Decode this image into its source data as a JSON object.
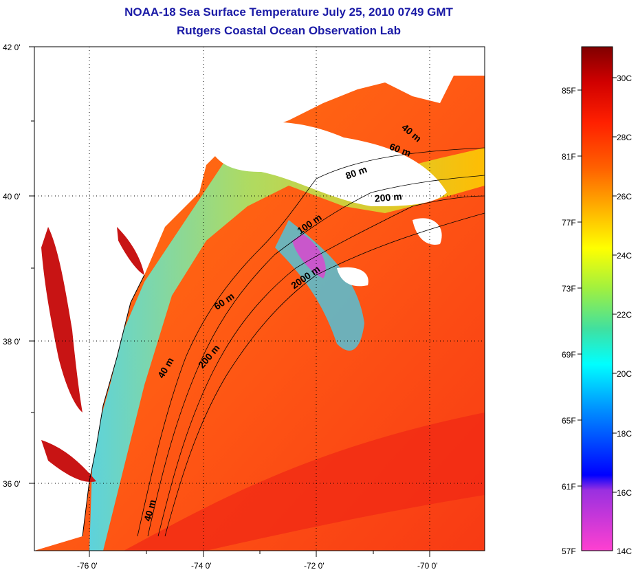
{
  "title": "NOAA-18 Sea Surface Temperature July 25, 2010 0749 GMT",
  "subtitle": "Rutgers Coastal Ocean Observation Lab",
  "axes": {
    "lat_labels": [
      "42 0'",
      "40 0'",
      "38 0'",
      "36 0'"
    ],
    "lon_labels": [
      "-76 0'",
      "-74 0'",
      "-72 0'",
      "-70 0'"
    ]
  },
  "depth_contours": [
    "40 m",
    "60 m",
    "80 m",
    "200 m",
    "100 m",
    "2000 m",
    "60 m",
    "200 m",
    "40 m",
    "40 m"
  ],
  "colorbar": {
    "fahrenheit": [
      "85F",
      "81F",
      "77F",
      "73F",
      "69F",
      "65F",
      "61F",
      "57F"
    ],
    "celsius": [
      "30C",
      "28C",
      "26C",
      "24C",
      "22C",
      "20C",
      "18C",
      "16C",
      "14C"
    ],
    "colors": [
      "#ff40d0",
      "#9a30e0",
      "#0000ff",
      "#0090ff",
      "#00ffff",
      "#40e0a0",
      "#a0f040",
      "#ffff00",
      "#ffb000",
      "#ff6000",
      "#ff2000",
      "#d00000",
      "#800000"
    ]
  },
  "colors": {
    "title": "#1a1aa6",
    "ocean_warm": "#ff5a14",
    "ocean_hot": "#f02814",
    "land": "#ffffff",
    "cloud": "#ffffff",
    "bay": "#c81414"
  }
}
